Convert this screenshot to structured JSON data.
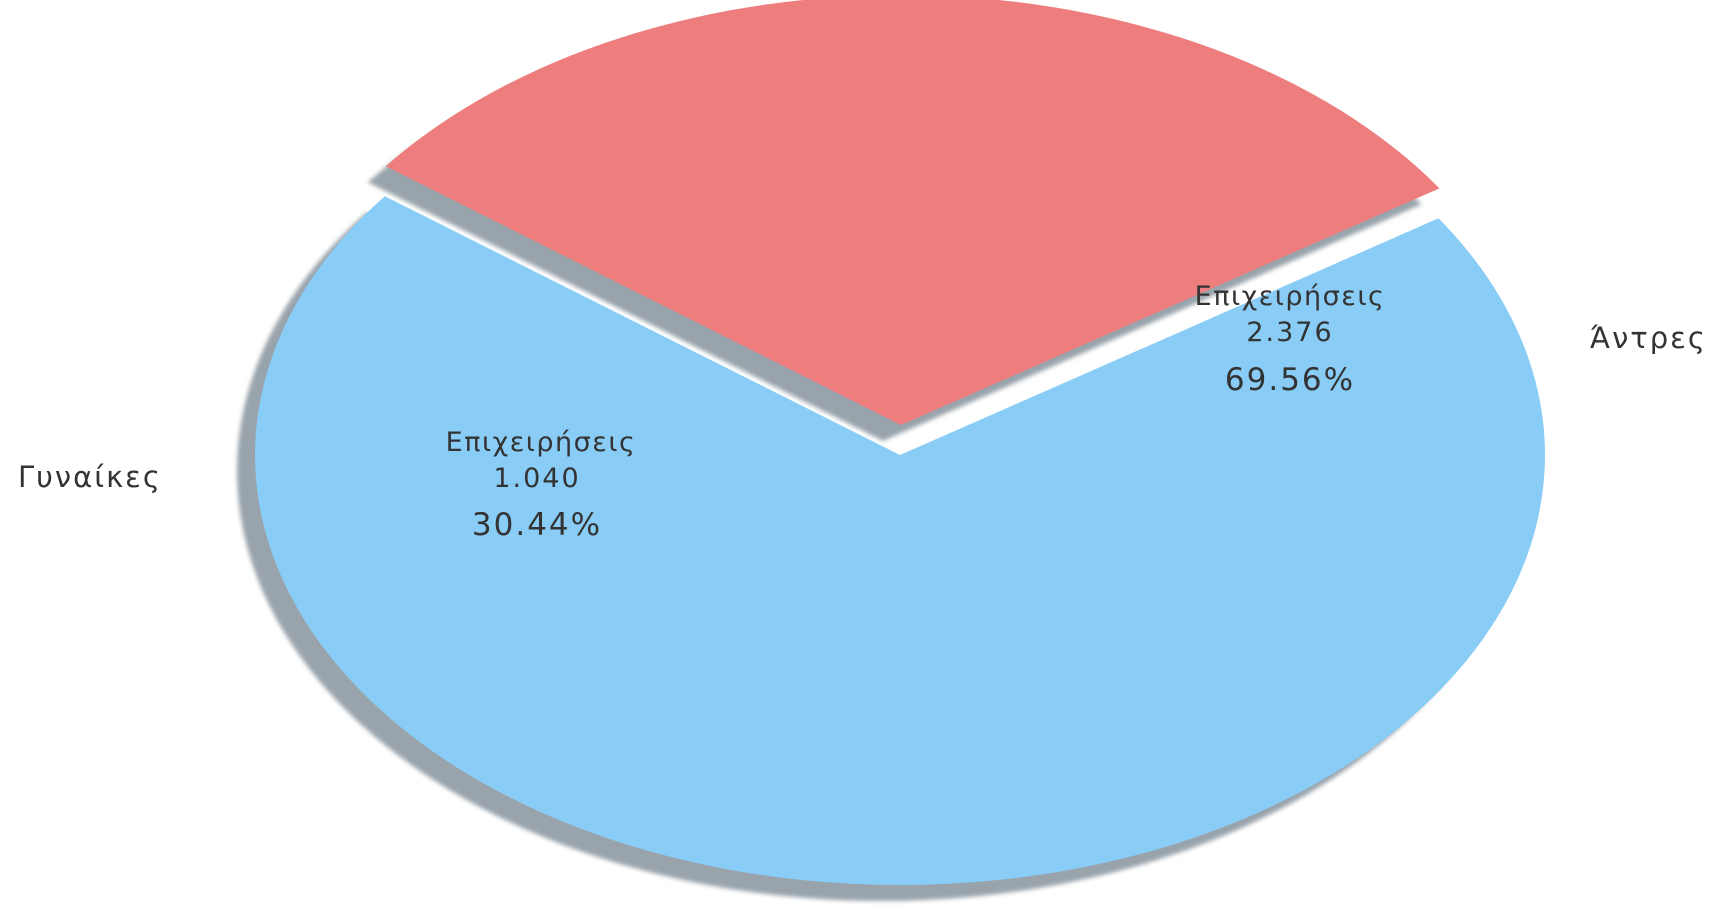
{
  "chart_data": {
    "type": "pie",
    "title": "",
    "exploded": [
      "Γυναίκες"
    ],
    "slices": [
      {
        "category": "Άντρες",
        "series_label": "Επιχειρήσεις",
        "value": 2376,
        "value_label": "2.376",
        "percent": 69.56,
        "percent_label": "69.56%",
        "color": "#89CDF7"
      },
      {
        "category": "Γυναίκες",
        "series_label": "Επιχειρήσεις",
        "value": 1040,
        "value_label": "1.040",
        "percent": 30.44,
        "percent_label": "30.44%",
        "color": "#EE7E7E"
      }
    ],
    "shadow_color": "#8E9AA3"
  }
}
